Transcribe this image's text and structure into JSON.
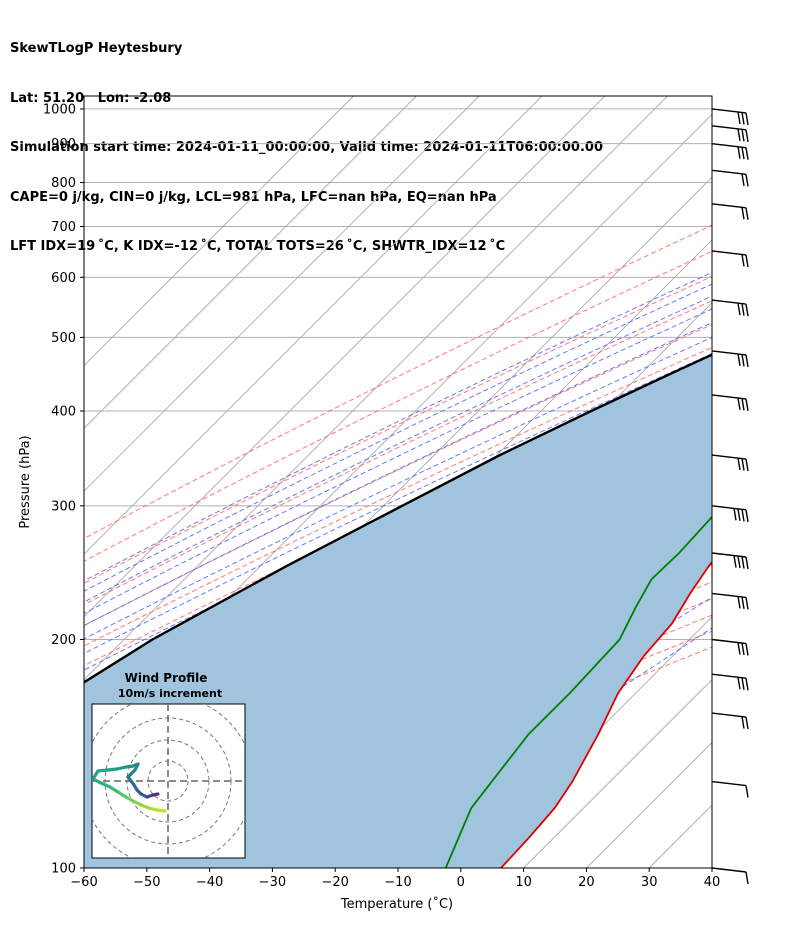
{
  "title": {
    "line1": "SkewTLogP Heytesbury",
    "line2": "Lat: 51.20   Lon: -2.08",
    "line3": "Simulation start time: 2024-01-11_00:00:00, Valid time: 2024-01-11T06:00:00.00",
    "line4": "CAPE=0 j/kg, CIN=0 j/kg, LCL=981 hPa, LFC=nan hPa, EQ=nan hPa",
    "line5": "LFT IDX=19 ˚C, K IDX=-12 ˚C, TOTAL TOTS=26 ˚C, SHWTR_IDX=12 ˚C"
  },
  "chart_data": {
    "type": "line",
    "xlabel": "Temperature (˚C)",
    "ylabel": "Pressure (hPa)",
    "xlim": [
      -60,
      40
    ],
    "ylim": [
      1040,
      100
    ],
    "y_scale": "log",
    "x_ticks": [
      -60,
      -50,
      -40,
      -30,
      -20,
      -10,
      0,
      10,
      20,
      30,
      40
    ],
    "x_tick_labels": [
      "−60",
      "−50",
      "−40",
      "−30",
      "−20",
      "−10",
      "0",
      "10",
      "20",
      "30",
      "40"
    ],
    "y_ticks": [
      100,
      200,
      300,
      400,
      500,
      600,
      700,
      800,
      900,
      1000
    ],
    "y_tick_labels": [
      "100",
      "200",
      "300",
      "400",
      "500",
      "600",
      "700",
      "800",
      "900",
      "1000"
    ],
    "grid": true,
    "colors": {
      "temperature": "#e00000",
      "dewpoint": "#008000",
      "parcel": "#000000",
      "cape_fill": "#a0c4de",
      "dry_adiabat": "#ff6060",
      "moist_adiabat": "#5060ff",
      "mixing_ratio": "#9933cc"
    },
    "series": [
      {
        "key": "temperature",
        "points": [
          [
            1000,
            0.1
          ],
          [
            1000,
            1.5
          ],
          [
            990,
            1.4
          ],
          [
            970,
            1.2
          ],
          [
            950,
            1.1
          ],
          [
            940,
            1.6
          ],
          [
            930,
            2.5
          ],
          [
            900,
            4.0
          ],
          [
            880,
            4.6
          ],
          [
            850,
            4.6
          ],
          [
            800,
            4.5
          ],
          [
            760,
            4.4
          ],
          [
            700,
            4.2
          ],
          [
            660,
            3.4
          ],
          [
            620,
            1.8
          ],
          [
            580,
            0.0
          ],
          [
            540,
            -1.8
          ],
          [
            500,
            -3.8
          ],
          [
            450,
            -6.6
          ],
          [
            400,
            -9.6
          ],
          [
            380,
            -10.5
          ],
          [
            360,
            -10.8
          ],
          [
            330,
            -10.2
          ],
          [
            300,
            -9.8
          ],
          [
            270,
            -9.5
          ],
          [
            250,
            -8.6
          ],
          [
            230,
            -7.2
          ],
          [
            210,
            -5.3
          ],
          [
            190,
            -4.6
          ],
          [
            170,
            -2.8
          ],
          [
            150,
            0.6
          ],
          [
            130,
            4.0
          ],
          [
            120,
            5.4
          ],
          [
            110,
            6.0
          ],
          [
            100,
            6.4
          ]
        ]
      },
      {
        "key": "dewpoint",
        "points": [
          [
            1000,
            -3.6
          ],
          [
            995,
            -3.6
          ],
          [
            990,
            -3.6
          ],
          [
            980,
            -3.6
          ],
          [
            970,
            -3.5
          ],
          [
            950,
            -3.4
          ],
          [
            940,
            -3.3
          ],
          [
            925,
            -4.0
          ],
          [
            915,
            -4.5
          ],
          [
            900,
            -5.0
          ],
          [
            890,
            -7.8
          ],
          [
            870,
            -12.4
          ],
          [
            855,
            -16.1
          ],
          [
            845,
            -18.6
          ],
          [
            840,
            -19.9
          ],
          [
            820,
            -18.6
          ],
          [
            810,
            -15.9
          ],
          [
            800,
            -13.7
          ],
          [
            780,
            -9.2
          ],
          [
            760,
            -6.3
          ],
          [
            740,
            -3.9
          ],
          [
            720,
            -3.3
          ],
          [
            700,
            -3.8
          ],
          [
            680,
            -4.7
          ],
          [
            660,
            -5.8
          ],
          [
            640,
            -6.0
          ],
          [
            600,
            -9.0
          ],
          [
            560,
            -12.7
          ],
          [
            520,
            -16.9
          ],
          [
            480,
            -22.2
          ],
          [
            460,
            -21.1
          ],
          [
            440,
            -18.7
          ],
          [
            420,
            -15.3
          ],
          [
            400,
            -13.7
          ],
          [
            370,
            -14.1
          ],
          [
            340,
            -15.9
          ],
          [
            310,
            -17.0
          ],
          [
            290,
            -15.9
          ],
          [
            260,
            -15.4
          ],
          [
            240,
            -15.6
          ],
          [
            220,
            -13.6
          ],
          [
            200,
            -11.1
          ],
          [
            170,
            -10.5
          ],
          [
            150,
            -10.5
          ],
          [
            120,
            -7.9
          ],
          [
            100,
            -2.4
          ]
        ]
      },
      {
        "key": "parcel",
        "points": [
          [
            1000,
            0.3
          ],
          [
            980,
            -1.7
          ],
          [
            950,
            -3.3
          ],
          [
            900,
            -6.0
          ],
          [
            850,
            -8.9
          ],
          [
            800,
            -12.1
          ],
          [
            750,
            -15.6
          ],
          [
            700,
            -19.5
          ],
          [
            650,
            -23.5
          ],
          [
            600,
            -28.0
          ],
          [
            550,
            -33.0
          ],
          [
            500,
            -38.5
          ],
          [
            450,
            -45.0
          ],
          [
            400,
            -52.0
          ],
          [
            350,
            -59.5
          ],
          [
            300,
            -67.0
          ],
          [
            250,
            -75.8
          ],
          [
            200,
            -85.5
          ],
          [
            150,
            -94.5
          ],
          [
            100,
            -105.0
          ]
        ]
      }
    ],
    "wind_barbs": [
      {
        "pressure": 100,
        "count": 1
      },
      {
        "pressure": 130,
        "count": 1
      },
      {
        "pressure": 160,
        "count": 2
      },
      {
        "pressure": 180,
        "count": 3
      },
      {
        "pressure": 200,
        "count": 3
      },
      {
        "pressure": 230,
        "count": 3
      },
      {
        "pressure": 260,
        "count": 4
      },
      {
        "pressure": 300,
        "count": 4
      },
      {
        "pressure": 350,
        "count": 3
      },
      {
        "pressure": 420,
        "count": 3
      },
      {
        "pressure": 480,
        "count": 3
      },
      {
        "pressure": 560,
        "count": 3
      },
      {
        "pressure": 650,
        "count": 2
      },
      {
        "pressure": 750,
        "count": 2
      },
      {
        "pressure": 830,
        "count": 2
      },
      {
        "pressure": 900,
        "count": 3
      },
      {
        "pressure": 950,
        "count": 3
      },
      {
        "pressure": 1000,
        "count": 3
      }
    ]
  },
  "hodograph": {
    "title": "Wind Profile",
    "subtitle": "10m/s increment"
  }
}
